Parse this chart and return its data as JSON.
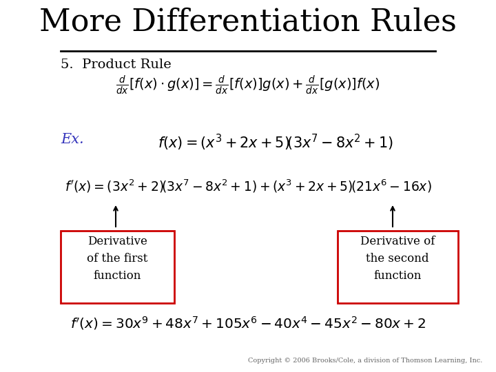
{
  "title": "More Differentiation Rules",
  "background_color": "#ffffff",
  "title_color": "#000000",
  "title_fontsize": 32,
  "section_label": "5.  Product Rule",
  "ex_label_color": "#3333bb",
  "box_edge_color": "#cc0000",
  "box_face_color": "#ffffff",
  "arrow_color": "#000000",
  "copyright": "Copyright © 2006 Brooks/Cole, a division of Thomson Learning, Inc.",
  "copyright_color": "#666666",
  "copyright_fontsize": 7
}
